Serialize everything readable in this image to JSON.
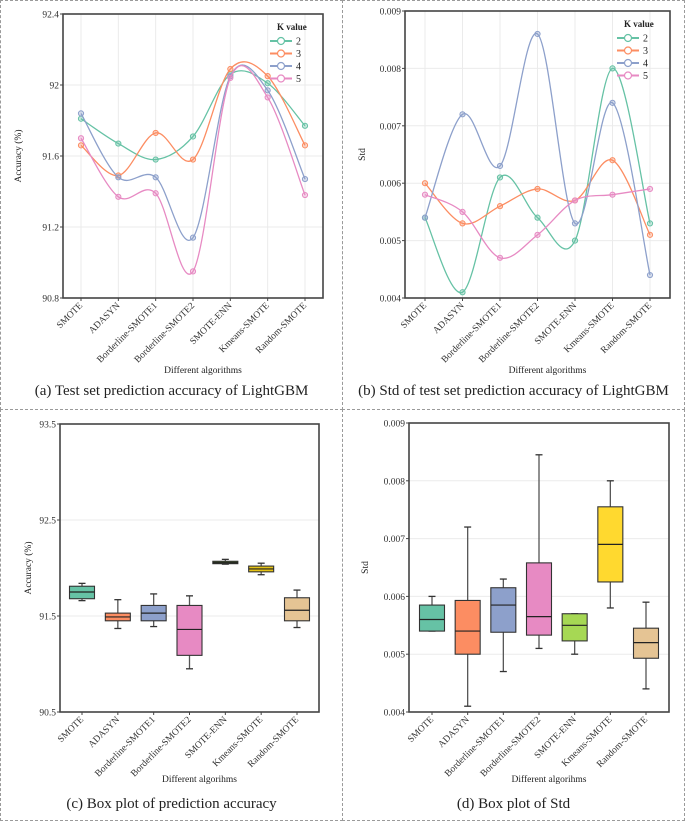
{
  "chart_data": [
    {
      "id": "a",
      "type": "line",
      "smooth": true,
      "caption": "(a) Test set prediction accuracy of LightGBM",
      "xlabel": "Different algorithms",
      "ylabel": "Accuracy (%)",
      "ylim": [
        90.8,
        92.4
      ],
      "yticks": [
        "90.8",
        "91.2",
        "91.6",
        "92",
        "92.4"
      ],
      "ytick_values": [
        90.8,
        91.2,
        91.6,
        92.0,
        92.4
      ],
      "categories": [
        "SMOTE",
        "ADASYN",
        "Borderline-SMOTE1",
        "Borderline-SMOTE2",
        "SMOTE-ENN",
        "Kmeans-SMOTE",
        "Random-SMOTE"
      ],
      "grid": true,
      "legend": {
        "title": "K value",
        "position": "top-right"
      },
      "series": [
        {
          "name": "2",
          "color": "#66c2a5",
          "values": [
            91.81,
            91.67,
            91.58,
            91.71,
            92.06,
            92.01,
            91.77
          ]
        },
        {
          "name": "3",
          "color": "#fc8d62",
          "values": [
            91.66,
            91.49,
            91.73,
            91.58,
            92.09,
            92.05,
            91.66
          ]
        },
        {
          "name": "4",
          "color": "#8da0cb",
          "values": [
            91.84,
            91.48,
            91.48,
            91.14,
            92.05,
            91.97,
            91.47
          ]
        },
        {
          "name": "5",
          "color": "#e78ac3",
          "values": [
            91.7,
            91.37,
            91.39,
            90.95,
            92.04,
            91.93,
            91.38
          ]
        }
      ]
    },
    {
      "id": "b",
      "type": "line",
      "smooth": true,
      "caption": "(b) Std of test set prediction accuracy of LightGBM",
      "xlabel": "Different algorithms",
      "ylabel": "Std",
      "ylim": [
        0.004,
        0.009
      ],
      "yticks": [
        "0.004",
        "0.005",
        "0.006",
        "0.007",
        "0.008",
        "0.009"
      ],
      "ytick_values": [
        0.004,
        0.005,
        0.006,
        0.007,
        0.008,
        0.009
      ],
      "categories": [
        "SMOTE",
        "ADASYN",
        "Borderline-SMOTE1",
        "Borderline-SMOTE2",
        "SMOTE-ENN",
        "Kmeans-SMOTE",
        "Random-SMOTE"
      ],
      "grid": true,
      "legend": {
        "title": "K value",
        "position": "top-right"
      },
      "series": [
        {
          "name": "2",
          "color": "#66c2a5",
          "values": [
            0.0054,
            0.0041,
            0.0061,
            0.0054,
            0.005,
            0.008,
            0.0053
          ]
        },
        {
          "name": "3",
          "color": "#fc8d62",
          "values": [
            0.006,
            0.0053,
            0.0056,
            0.0059,
            0.0057,
            0.0064,
            0.0051
          ]
        },
        {
          "name": "4",
          "color": "#8da0cb",
          "values": [
            0.0054,
            0.0072,
            0.0063,
            0.0086,
            0.0053,
            0.0074,
            0.0044
          ]
        },
        {
          "name": "5",
          "color": "#e78ac3",
          "values": [
            0.0058,
            0.0055,
            0.0047,
            0.0051,
            0.0057,
            0.0058,
            0.0059
          ]
        }
      ]
    },
    {
      "id": "c",
      "type": "box",
      "caption": "(c) Box plot of prediction accuracy",
      "xlabel": "Different algorihms",
      "ylabel": "Accuracy (%)",
      "ylim": [
        90.5,
        93.5
      ],
      "yticks": [
        "90.5",
        "91.5",
        "92.5",
        "93.5"
      ],
      "ytick_values": [
        90.5,
        91.5,
        92.5,
        93.5
      ],
      "categories": [
        "SMOTE",
        "ADASYN",
        "Borderline-SMOTE1",
        "Borderline-SMOTE2",
        "SMOTE-ENN",
        "Kmeans-SMOTE",
        "Random-SMOTE"
      ],
      "grid": true,
      "boxes": [
        {
          "name": "SMOTE",
          "color": "#66c2a5",
          "min": 91.66,
          "q1": 91.68,
          "median": 91.75,
          "q3": 91.81,
          "max": 91.84
        },
        {
          "name": "ADASYN",
          "color": "#fc8d62",
          "min": 91.37,
          "q1": 91.45,
          "median": 91.49,
          "q3": 91.53,
          "max": 91.67
        },
        {
          "name": "Borderline-SMOTE1",
          "color": "#8da0cb",
          "min": 91.39,
          "q1": 91.45,
          "median": 91.53,
          "q3": 91.61,
          "max": 91.73
        },
        {
          "name": "Borderline-SMOTE2",
          "color": "#e78ac3",
          "min": 90.95,
          "q1": 91.09,
          "median": 91.36,
          "q3": 91.61,
          "max": 91.71
        },
        {
          "name": "SMOTE-ENN",
          "color": "#4d7a1f",
          "min": 92.04,
          "q1": 92.045,
          "median": 92.055,
          "q3": 92.07,
          "max": 92.09
        },
        {
          "name": "Kmeans-SMOTE",
          "color": "#e5c316",
          "min": 91.93,
          "q1": 91.96,
          "median": 91.99,
          "q3": 92.02,
          "max": 92.05
        },
        {
          "name": "Random-SMOTE",
          "color": "#e5c494",
          "min": 91.38,
          "q1": 91.45,
          "median": 91.56,
          "q3": 91.69,
          "max": 91.77
        }
      ]
    },
    {
      "id": "d",
      "type": "box",
      "caption": "(d) Box plot of Std",
      "xlabel": "Different algorihms",
      "ylabel": "Std",
      "ylim": [
        0.004,
        0.009
      ],
      "yticks": [
        "0.004",
        "0.005",
        "0.006",
        "0.007",
        "0.008",
        "0.009"
      ],
      "ytick_values": [
        0.004,
        0.005,
        0.006,
        0.007,
        0.008,
        0.009
      ],
      "categories": [
        "SMOTE",
        "ADASYN",
        "Borderline-SMOTE1",
        "Borderline-SMOTE2",
        "SMOTE-ENN",
        "Kmeans-SMOTE",
        "Random-SMOTE"
      ],
      "grid": true,
      "boxes": [
        {
          "name": "SMOTE",
          "color": "#66c2a5",
          "min": 0.0054,
          "q1": 0.0054,
          "median": 0.0056,
          "q3": 0.00585,
          "max": 0.006
        },
        {
          "name": "ADASYN",
          "color": "#fc8d62",
          "min": 0.0041,
          "q1": 0.005,
          "median": 0.0054,
          "q3": 0.00593,
          "max": 0.0072
        },
        {
          "name": "Borderline-SMOTE1",
          "color": "#8da0cb",
          "min": 0.0047,
          "q1": 0.00538,
          "median": 0.00585,
          "q3": 0.00615,
          "max": 0.0063
        },
        {
          "name": "Borderline-SMOTE2",
          "color": "#e78ac3",
          "min": 0.0051,
          "q1": 0.00533,
          "median": 0.00565,
          "q3": 0.00658,
          "max": 0.00845
        },
        {
          "name": "SMOTE-ENN",
          "color": "#a6d854",
          "min": 0.005,
          "q1": 0.00523,
          "median": 0.0055,
          "q3": 0.0057,
          "max": 0.0057
        },
        {
          "name": "Kmeans-SMOTE",
          "color": "#ffd92f",
          "min": 0.0058,
          "q1": 0.00625,
          "median": 0.0069,
          "q3": 0.00755,
          "max": 0.008
        },
        {
          "name": "Random-SMOTE",
          "color": "#e5c494",
          "min": 0.0044,
          "q1": 0.00493,
          "median": 0.0052,
          "q3": 0.00545,
          "max": 0.0059
        }
      ]
    }
  ]
}
